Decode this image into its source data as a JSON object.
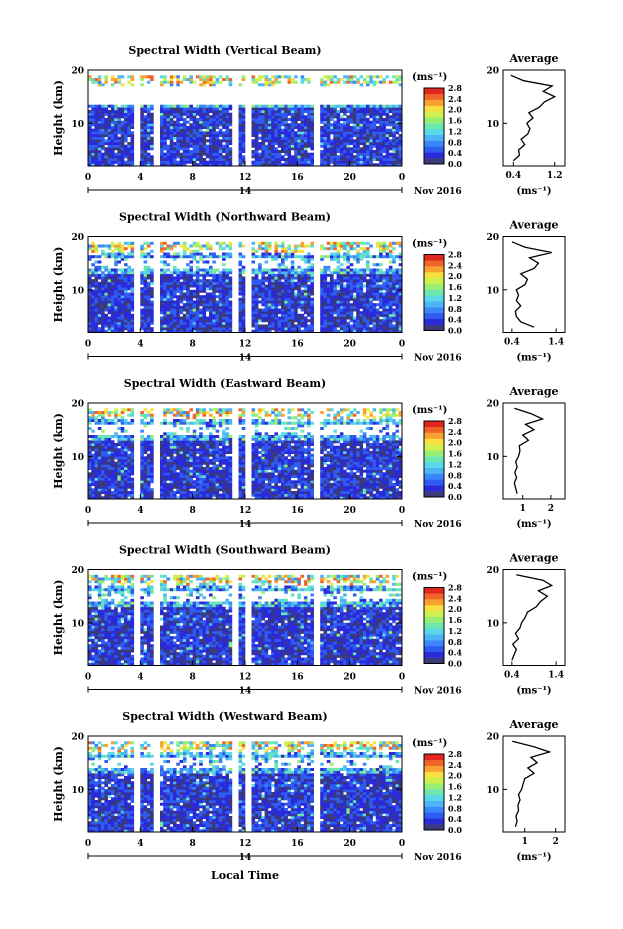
{
  "figure": {
    "date_label": "Nov 2016",
    "day_label": "14",
    "xlabel": "Local Time",
    "colorbar_unit": "(ms⁻¹)",
    "colorbar_ticks": [
      "0.0",
      "0.4",
      "0.8",
      "1.2",
      "1.6",
      "2.0",
      "2.4",
      "2.8"
    ],
    "colorscale": [
      "#3a3a7a",
      "#2a2ad8",
      "#2f5cf0",
      "#3a86f8",
      "#4cb4f4",
      "#58d8e8",
      "#6ee6b0",
      "#98ee70",
      "#d0f050",
      "#f8e040",
      "#f8a030",
      "#f06428",
      "#e02820"
    ]
  },
  "chart_data": [
    {
      "type": "heatmap",
      "title": "Spectral Width (Vertical Beam)",
      "ylabel": "Height (km)",
      "x_ticks": [
        "0",
        "4",
        "8",
        "12",
        "16",
        "20",
        "0"
      ],
      "xlim": [
        0,
        24
      ],
      "y_ticks": [
        "20",
        "10"
      ],
      "ylim": [
        2,
        20
      ],
      "colorbar_range": [
        0.0,
        2.8
      ],
      "profile": {
        "title": "Average",
        "xlabel": "(ms⁻¹)",
        "x_ticks": [
          "0.4",
          "1.2"
        ],
        "xlim": [
          0.2,
          1.4
        ],
        "y_ticks": [
          "20",
          "10"
        ],
        "heights": [
          3,
          4,
          5,
          6,
          7,
          8,
          9,
          10,
          11,
          12,
          13,
          14,
          15,
          16,
          17,
          18,
          19
        ],
        "values": [
          0.4,
          0.52,
          0.5,
          0.62,
          0.55,
          0.68,
          0.72,
          0.66,
          0.78,
          0.7,
          0.9,
          1.0,
          1.2,
          0.98,
          1.15,
          0.6,
          0.35
        ]
      }
    },
    {
      "type": "heatmap",
      "title": "Spectral Width (Northward Beam)",
      "ylabel": "Height (km)",
      "x_ticks": [
        "0",
        "4",
        "8",
        "12",
        "16",
        "20",
        "0"
      ],
      "xlim": [
        0,
        24
      ],
      "y_ticks": [
        "20",
        "10"
      ],
      "ylim": [
        2,
        20
      ],
      "colorbar_range": [
        0.0,
        2.8
      ],
      "profile": {
        "title": "Average",
        "xlabel": "(ms⁻¹)",
        "x_ticks": [
          "0.4",
          "1.4"
        ],
        "xlim": [
          0.2,
          1.6
        ],
        "y_ticks": [
          "20",
          "10"
        ],
        "heights": [
          3,
          4,
          5,
          6,
          7,
          8,
          9,
          10,
          11,
          12,
          13,
          14,
          15,
          16,
          17,
          18,
          19
        ],
        "values": [
          0.9,
          0.6,
          0.5,
          0.48,
          0.6,
          0.5,
          0.55,
          0.5,
          0.7,
          0.75,
          0.6,
          0.9,
          1.0,
          0.8,
          1.3,
          0.7,
          0.4
        ]
      }
    },
    {
      "type": "heatmap",
      "title": "Spectral Width (Eastward Beam)",
      "ylabel": "Height (km)",
      "x_ticks": [
        "0",
        "4",
        "8",
        "12",
        "16",
        "20",
        "0"
      ],
      "xlim": [
        0,
        24
      ],
      "y_ticks": [
        "20",
        "10"
      ],
      "ylim": [
        2,
        20
      ],
      "colorbar_range": [
        0.0,
        2.8
      ],
      "profile": {
        "title": "Average",
        "xlabel": "(ms⁻¹)",
        "x_ticks": [
          "1",
          "2"
        ],
        "xlim": [
          0.3,
          2.5
        ],
        "y_ticks": [
          "20",
          "10"
        ],
        "heights": [
          3,
          4,
          5,
          6,
          7,
          8,
          9,
          10,
          11,
          12,
          13,
          14,
          15,
          16,
          17,
          18,
          19
        ],
        "values": [
          0.8,
          0.75,
          0.7,
          0.78,
          0.72,
          0.8,
          0.75,
          0.85,
          0.9,
          0.88,
          1.2,
          1.0,
          1.4,
          1.1,
          1.7,
          1.3,
          0.7
        ]
      }
    },
    {
      "type": "heatmap",
      "title": "Spectral Width (Southward Beam)",
      "ylabel": "Height (km)",
      "x_ticks": [
        "0",
        "4",
        "8",
        "12",
        "16",
        "20",
        "0"
      ],
      "xlim": [
        0,
        24
      ],
      "y_ticks": [
        "20",
        "10"
      ],
      "ylim": [
        2,
        20
      ],
      "colorbar_range": [
        0.0,
        2.8
      ],
      "profile": {
        "title": "Average",
        "xlabel": "(ms⁻¹)",
        "x_ticks": [
          "0.4",
          "1.4"
        ],
        "xlim": [
          0.2,
          1.6
        ],
        "y_ticks": [
          "20",
          "10"
        ],
        "heights": [
          3,
          4,
          5,
          6,
          7,
          8,
          9,
          10,
          11,
          12,
          13,
          14,
          15,
          16,
          17,
          18,
          19
        ],
        "values": [
          0.4,
          0.45,
          0.5,
          0.42,
          0.55,
          0.48,
          0.58,
          0.62,
          0.7,
          0.75,
          0.95,
          1.05,
          1.2,
          1.0,
          1.3,
          1.1,
          0.5
        ]
      }
    },
    {
      "type": "heatmap",
      "title": "Spectral Width (Westward Beam)",
      "ylabel": "Height (km)",
      "x_ticks": [
        "0",
        "4",
        "8",
        "12",
        "16",
        "20",
        "0"
      ],
      "xlim": [
        0,
        24
      ],
      "y_ticks": [
        "20",
        "10"
      ],
      "ylim": [
        2,
        20
      ],
      "colorbar_range": [
        0.0,
        2.8
      ],
      "profile": {
        "title": "Average",
        "xlabel": "(ms⁻¹)",
        "x_ticks": [
          "1",
          "2"
        ],
        "xlim": [
          0.3,
          2.3
        ],
        "y_ticks": [
          "20",
          "10"
        ],
        "heights": [
          3,
          4,
          5,
          6,
          7,
          8,
          9,
          10,
          11,
          12,
          13,
          14,
          15,
          16,
          17,
          18,
          19
        ],
        "values": [
          0.7,
          0.75,
          0.72,
          0.8,
          0.78,
          0.85,
          0.8,
          0.9,
          0.95,
          1.0,
          1.3,
          1.1,
          1.4,
          1.2,
          1.8,
          1.3,
          0.6
        ]
      }
    }
  ]
}
